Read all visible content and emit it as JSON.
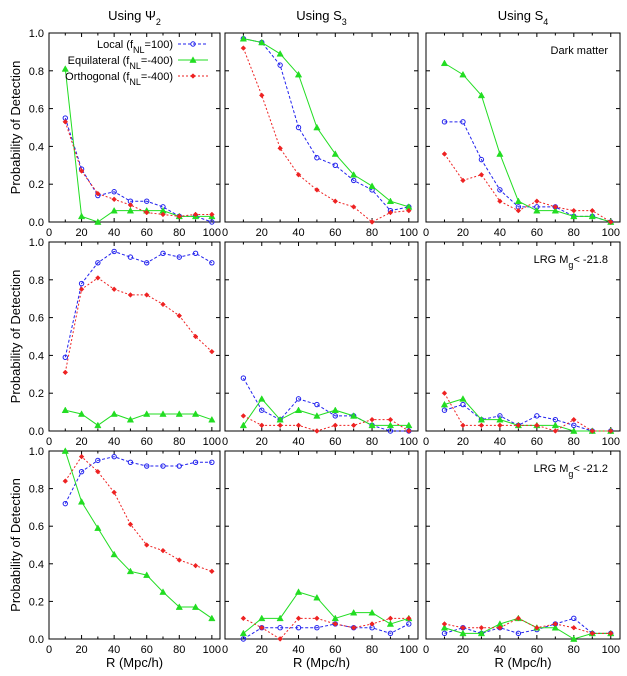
{
  "column_titles": [
    {
      "base": "Using Ψ",
      "sub": "2"
    },
    {
      "base": "Using S",
      "sub": "3"
    },
    {
      "base": "Using S",
      "sub": "4"
    }
  ],
  "row_labels": [
    {
      "base": "Dark matter",
      "sub": "",
      "tail": ""
    },
    {
      "base": "LRG M",
      "sub": "g",
      "tail": "< -21.8"
    },
    {
      "base": "LRG M",
      "sub": "g",
      "tail": "< -21.2"
    }
  ],
  "ylabel": "Probability of Detection",
  "xlabel": "R (Mpc/h)",
  "legend": [
    {
      "pre": "Local (f",
      "sub": "NL",
      "post": "=100)"
    },
    {
      "pre": "Equilateral (f",
      "sub": "NL",
      "post": "=-400)"
    },
    {
      "pre": "Orthogonal (f",
      "sub": "NL",
      "post": "=-400)"
    }
  ],
  "colors": {
    "local": "#2222ee",
    "equilateral": "#22dd22",
    "orthogonal": "#ee2222"
  },
  "chart_data": [
    {
      "type": "line",
      "row": 0,
      "col": 0,
      "x": [
        10,
        20,
        30,
        40,
        50,
        60,
        70,
        80,
        90,
        100
      ],
      "xlim": [
        0,
        105
      ],
      "ylim": [
        0,
        1
      ],
      "grid": false,
      "legend_position": "top-right",
      "series": [
        {
          "name": "Local",
          "values": [
            0.55,
            0.28,
            0.14,
            0.16,
            0.11,
            0.11,
            0.08,
            0.03,
            0.03,
            0.0
          ]
        },
        {
          "name": "Equilateral",
          "values": [
            0.81,
            0.03,
            0.0,
            0.06,
            0.06,
            0.06,
            0.06,
            0.03,
            0.03,
            0.03
          ]
        },
        {
          "name": "Orthogonal",
          "values": [
            0.53,
            0.27,
            0.15,
            0.12,
            0.09,
            0.05,
            0.04,
            0.03,
            0.04,
            0.04
          ]
        }
      ]
    },
    {
      "type": "line",
      "row": 0,
      "col": 1,
      "x": [
        10,
        20,
        30,
        40,
        50,
        60,
        70,
        80,
        90,
        100
      ],
      "xlim": [
        0,
        105
      ],
      "ylim": [
        0,
        1
      ],
      "grid": false,
      "series": [
        {
          "name": "Local",
          "values": [
            0.97,
            0.95,
            0.83,
            0.5,
            0.34,
            0.3,
            0.22,
            0.17,
            0.06,
            0.08
          ]
        },
        {
          "name": "Equilateral",
          "values": [
            0.97,
            0.95,
            0.89,
            0.78,
            0.5,
            0.36,
            0.25,
            0.19,
            0.11,
            0.08
          ]
        },
        {
          "name": "Orthogonal",
          "values": [
            0.92,
            0.67,
            0.39,
            0.25,
            0.17,
            0.11,
            0.08,
            0.0,
            0.05,
            0.06
          ]
        }
      ]
    },
    {
      "type": "line",
      "row": 0,
      "col": 2,
      "x": [
        10,
        20,
        30,
        40,
        50,
        60,
        70,
        80,
        90,
        100
      ],
      "xlim": [
        0,
        105
      ],
      "ylim": [
        0,
        1
      ],
      "grid": false,
      "series": [
        {
          "name": "Local",
          "values": [
            0.53,
            0.53,
            0.33,
            0.17,
            0.08,
            0.08,
            0.08,
            0.03,
            0.03,
            0.0
          ]
        },
        {
          "name": "Equilateral",
          "values": [
            0.84,
            0.78,
            0.67,
            0.36,
            0.11,
            0.06,
            0.06,
            0.03,
            0.03,
            0.0
          ]
        },
        {
          "name": "Orthogonal",
          "values": [
            0.36,
            0.22,
            0.25,
            0.11,
            0.06,
            0.11,
            0.08,
            0.06,
            0.06,
            0.0
          ]
        }
      ]
    },
    {
      "type": "line",
      "row": 1,
      "col": 0,
      "x": [
        10,
        20,
        30,
        40,
        50,
        60,
        70,
        80,
        90,
        100
      ],
      "xlim": [
        0,
        105
      ],
      "ylim": [
        0,
        1
      ],
      "grid": false,
      "series": [
        {
          "name": "Local",
          "values": [
            0.39,
            0.78,
            0.89,
            0.95,
            0.92,
            0.89,
            0.94,
            0.92,
            0.94,
            0.89
          ]
        },
        {
          "name": "Equilateral",
          "values": [
            0.11,
            0.09,
            0.03,
            0.09,
            0.06,
            0.09,
            0.09,
            0.09,
            0.09,
            0.06
          ]
        },
        {
          "name": "Orthogonal",
          "values": [
            0.31,
            0.75,
            0.81,
            0.75,
            0.72,
            0.72,
            0.67,
            0.61,
            0.5,
            0.42
          ]
        }
      ]
    },
    {
      "type": "line",
      "row": 1,
      "col": 1,
      "x": [
        10,
        20,
        30,
        40,
        50,
        60,
        70,
        80,
        90,
        100
      ],
      "xlim": [
        0,
        105
      ],
      "ylim": [
        0,
        1
      ],
      "grid": false,
      "series": [
        {
          "name": "Local",
          "values": [
            0.28,
            0.11,
            0.06,
            0.17,
            0.14,
            0.08,
            0.08,
            0.03,
            0.0,
            0.0
          ]
        },
        {
          "name": "Equilateral",
          "values": [
            0.03,
            0.17,
            0.06,
            0.11,
            0.08,
            0.11,
            0.08,
            0.03,
            0.03,
            0.03
          ]
        },
        {
          "name": "Orthogonal",
          "values": [
            0.08,
            0.03,
            0.03,
            0.03,
            0.0,
            0.03,
            0.03,
            0.06,
            0.06,
            0.0
          ]
        }
      ]
    },
    {
      "type": "line",
      "row": 1,
      "col": 2,
      "x": [
        10,
        20,
        30,
        40,
        50,
        60,
        70,
        80,
        90,
        100
      ],
      "xlim": [
        0,
        105
      ],
      "ylim": [
        0,
        1
      ],
      "grid": false,
      "series": [
        {
          "name": "Local",
          "values": [
            0.11,
            0.14,
            0.06,
            0.08,
            0.03,
            0.08,
            0.06,
            0.03,
            0.0,
            0.0
          ]
        },
        {
          "name": "Equilateral",
          "values": [
            0.14,
            0.17,
            0.06,
            0.06,
            0.03,
            0.03,
            0.03,
            0.0,
            0.0,
            0.0
          ]
        },
        {
          "name": "Orthogonal",
          "values": [
            0.2,
            0.03,
            0.03,
            0.03,
            0.03,
            0.03,
            0.0,
            0.06,
            0.0,
            0.0
          ]
        }
      ]
    },
    {
      "type": "line",
      "row": 2,
      "col": 0,
      "x": [
        10,
        20,
        30,
        40,
        50,
        60,
        70,
        80,
        90,
        100
      ],
      "xlim": [
        0,
        105
      ],
      "ylim": [
        0,
        1
      ],
      "grid": false,
      "series": [
        {
          "name": "Local",
          "values": [
            0.72,
            0.89,
            0.95,
            0.97,
            0.94,
            0.92,
            0.92,
            0.92,
            0.94,
            0.94
          ]
        },
        {
          "name": "Equilateral",
          "values": [
            1.0,
            0.73,
            0.59,
            0.45,
            0.36,
            0.34,
            0.25,
            0.17,
            0.17,
            0.11
          ]
        },
        {
          "name": "Orthogonal",
          "values": [
            0.84,
            0.97,
            0.89,
            0.78,
            0.61,
            0.5,
            0.47,
            0.42,
            0.39,
            0.36
          ]
        }
      ]
    },
    {
      "type": "line",
      "row": 2,
      "col": 1,
      "x": [
        10,
        20,
        30,
        40,
        50,
        60,
        70,
        80,
        90,
        100
      ],
      "xlim": [
        0,
        105
      ],
      "ylim": [
        0,
        1
      ],
      "grid": false,
      "series": [
        {
          "name": "Local",
          "values": [
            0.0,
            0.06,
            0.06,
            0.06,
            0.06,
            0.08,
            0.06,
            0.06,
            0.03,
            0.08
          ]
        },
        {
          "name": "Equilateral",
          "values": [
            0.03,
            0.11,
            0.11,
            0.25,
            0.22,
            0.11,
            0.14,
            0.14,
            0.08,
            0.11
          ]
        },
        {
          "name": "Orthogonal",
          "values": [
            0.11,
            0.06,
            0.0,
            0.11,
            0.11,
            0.08,
            0.06,
            0.08,
            0.11,
            0.11
          ]
        }
      ]
    },
    {
      "type": "line",
      "row": 2,
      "col": 2,
      "x": [
        10,
        20,
        30,
        40,
        50,
        60,
        70,
        80,
        90,
        100
      ],
      "xlim": [
        0,
        105
      ],
      "ylim": [
        0,
        1
      ],
      "grid": false,
      "series": [
        {
          "name": "Local",
          "values": [
            0.03,
            0.06,
            0.03,
            0.06,
            0.03,
            0.05,
            0.08,
            0.11,
            0.03,
            0.03
          ]
        },
        {
          "name": "Equilateral",
          "values": [
            0.06,
            0.03,
            0.03,
            0.08,
            0.11,
            0.06,
            0.06,
            0.0,
            0.03,
            0.03
          ]
        },
        {
          "name": "Orthogonal",
          "values": [
            0.08,
            0.06,
            0.06,
            0.06,
            0.11,
            0.06,
            0.08,
            0.06,
            0.03,
            0.03
          ]
        }
      ]
    }
  ]
}
